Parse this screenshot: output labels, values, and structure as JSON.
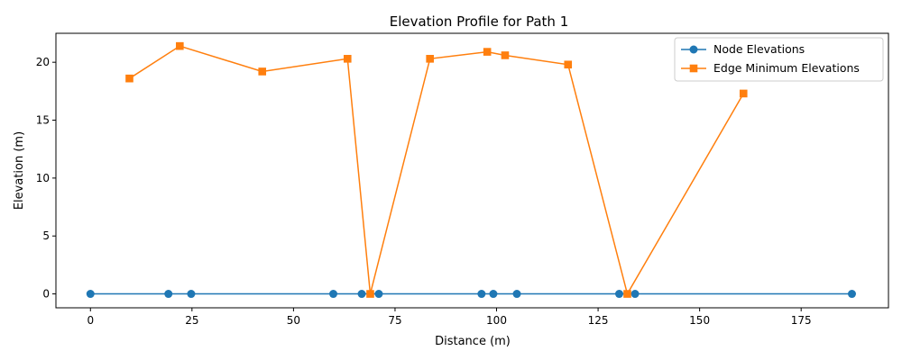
{
  "chart_data": {
    "type": "line",
    "title": "Elevation Profile for Path 1",
    "xlabel": "Distance (m)",
    "ylabel": "Elevation (m)",
    "xlim": [
      -8.5,
      196.5
    ],
    "ylim": [
      -1.2,
      22.5
    ],
    "xticks": [
      0,
      25,
      50,
      75,
      100,
      125,
      150,
      175
    ],
    "yticks": [
      0,
      5,
      10,
      15,
      20
    ],
    "grid": false,
    "legend_position": "top-right",
    "series": [
      {
        "name": "Node Elevations",
        "color": "#1f77b4",
        "marker": "circle",
        "x": [
          0,
          19.2,
          24.8,
          59.8,
          66.8,
          71.0,
          96.3,
          99.2,
          105.0,
          130.2,
          134.1,
          187.5
        ],
        "y": [
          0,
          0,
          0,
          0,
          0,
          0,
          0,
          0,
          0,
          0,
          0,
          0
        ]
      },
      {
        "name": "Edge Minimum Elevations",
        "color": "#ff7f0e",
        "marker": "square",
        "x": [
          9.6,
          22.0,
          42.3,
          63.3,
          68.9,
          83.6,
          97.7,
          102.1,
          117.6,
          132.2,
          160.8
        ],
        "y": [
          18.6,
          21.4,
          19.2,
          20.3,
          0,
          20.3,
          20.9,
          20.6,
          19.8,
          0,
          17.3
        ]
      }
    ]
  }
}
